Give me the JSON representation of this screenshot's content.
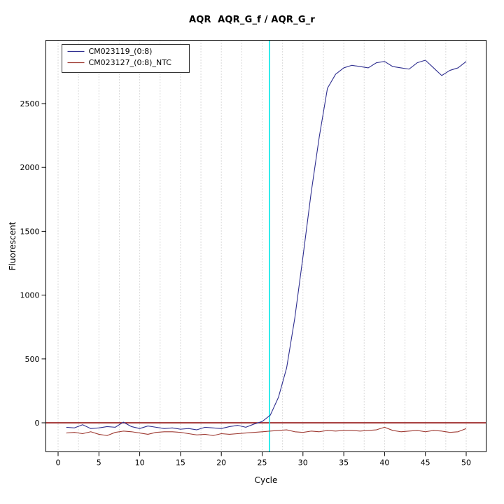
{
  "chart_data": {
    "type": "line",
    "title": "AQR  AQR_G_f / AQR_G_r",
    "xlabel": "Cycle",
    "ylabel": "Fluorescent",
    "xlim": [
      -1.55,
      52.5
    ],
    "ylim": [
      -225,
      3000
    ],
    "xticks": [
      0,
      5,
      10,
      15,
      20,
      25,
      30,
      35,
      40,
      45,
      50
    ],
    "yticks": [
      0,
      500,
      1000,
      1500,
      2000,
      2500
    ],
    "grid": {
      "vertical_every": 2.5,
      "style": "dotted",
      "color": "#b4b4b4",
      "horizontal": false
    },
    "threshold_line": {
      "y": 0,
      "color": "#8b0000"
    },
    "ct_marker": {
      "x": 25.9,
      "color": "#00e8e8"
    },
    "x": [
      1,
      2,
      3,
      4,
      5,
      6,
      7,
      8,
      9,
      10,
      11,
      12,
      13,
      14,
      15,
      16,
      17,
      18,
      19,
      20,
      21,
      22,
      23,
      24,
      25,
      26,
      27,
      28,
      29,
      30,
      31,
      32,
      33,
      34,
      35,
      36,
      37,
      38,
      39,
      40,
      41,
      42,
      43,
      44,
      45,
      46,
      47,
      48,
      49,
      50
    ],
    "series": [
      {
        "name": "CM023119_(0:8)",
        "color": "#2e2e8f",
        "values": [
          -35,
          -40,
          -15,
          -45,
          -40,
          -30,
          -35,
          5,
          -30,
          -45,
          -25,
          -35,
          -45,
          -40,
          -50,
          -45,
          -55,
          -35,
          -40,
          -45,
          -30,
          -20,
          -35,
          -10,
          10,
          60,
          200,
          430,
          820,
          1300,
          1800,
          2240,
          2620,
          2730,
          2780,
          2800,
          2790,
          2780,
          2820,
          2830,
          2790,
          2780,
          2770,
          2820,
          2840,
          2780,
          2720,
          2760,
          2780,
          2830
        ]
      },
      {
        "name": "CM023127_(0:8)_NTC",
        "color": "#9e3a32",
        "values": [
          -80,
          -75,
          -85,
          -70,
          -90,
          -100,
          -75,
          -65,
          -70,
          -80,
          -90,
          -75,
          -70,
          -70,
          -75,
          -85,
          -95,
          -90,
          -100,
          -85,
          -90,
          -85,
          -80,
          -75,
          -70,
          -65,
          -60,
          -55,
          -70,
          -75,
          -65,
          -70,
          -60,
          -65,
          -60,
          -60,
          -65,
          -60,
          -55,
          -35,
          -60,
          -70,
          -65,
          -60,
          -70,
          -60,
          -65,
          -75,
          -70,
          -45
        ]
      }
    ],
    "legend": {
      "position": "top-left",
      "border_color": "#333333",
      "entries": [
        "CM023119_(0:8)",
        "CM023127_(0:8)_NTC"
      ]
    }
  }
}
